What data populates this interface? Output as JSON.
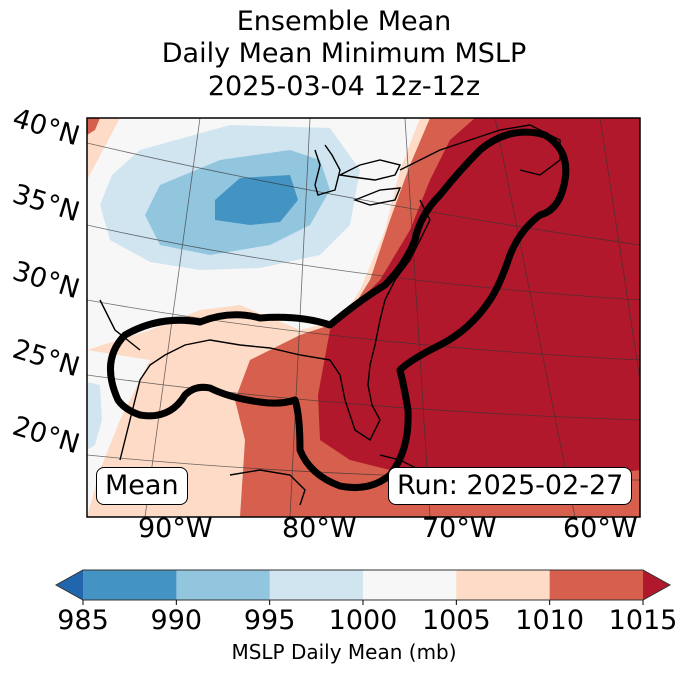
{
  "title": {
    "line1": "Ensemble Mean",
    "line2": "Daily Mean Minimum MSLP",
    "line3": "2025-03-04 12z-12z"
  },
  "annotations": {
    "left_box": "Mean",
    "right_box": "Run: 2025-02-27"
  },
  "chart_data": {
    "type": "heatmap",
    "title": "Ensemble Mean Daily Mean Minimum MSLP 2025-03-04 12z-12z",
    "subtitle": "",
    "variable": "MSLP Daily Mean (mb)",
    "lat_ticks": [
      "40°N",
      "35°N",
      "30°N",
      "25°N",
      "20°N"
    ],
    "lon_ticks": [
      "90°W",
      "80°W",
      "70°W",
      "60°W"
    ],
    "colorbar": {
      "label": "MSLP Daily Mean (mb)",
      "ticks": [
        985,
        990,
        995,
        1000,
        1005,
        1010,
        1015
      ],
      "extend": "both",
      "bins": [
        {
          "range": "<985",
          "color": "#2166ac"
        },
        {
          "range": "985-990",
          "color": "#4393c3"
        },
        {
          "range": "990-995",
          "color": "#92c5de"
        },
        {
          "range": "995-1000",
          "color": "#d1e5f0"
        },
        {
          "range": "1000-1005",
          "color": "#f7f7f7"
        },
        {
          "range": "1005-1010",
          "color": "#fddbc7"
        },
        {
          "range": "1010-1015",
          "color": "#d6604d"
        },
        {
          "range": ">1015",
          "color": "#b2182b"
        }
      ]
    },
    "features": {
      "low_center": "985-990 mb over central US (~37°N, 88°W)",
      "high_region": ">1015 mb over western Atlantic and US East Coast",
      "outlined_region": "thick black contour enclosing Gulf Coast, Florida and US East Coast to Nova Scotia"
    },
    "grid": true,
    "legend": "bottom"
  }
}
